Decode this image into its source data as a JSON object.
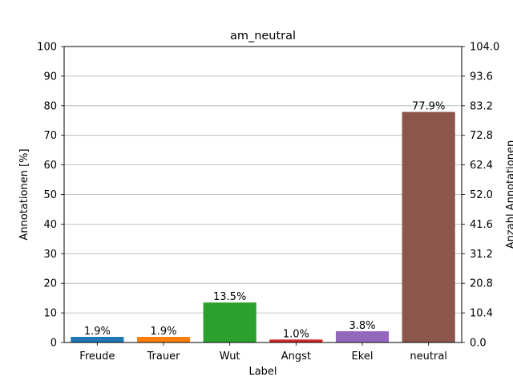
{
  "chart_data": {
    "type": "bar",
    "title": "am_neutral",
    "xlabel": "Label",
    "ylabel": "Annotationen [%]",
    "ylabel_right": "Anzahl Annotationen",
    "categories": [
      "Freude",
      "Trauer",
      "Wut",
      "Angst",
      "Ekel",
      "neutral"
    ],
    "values": [
      1.9,
      1.9,
      13.5,
      1.0,
      3.8,
      77.9
    ],
    "value_labels": [
      "1.9%",
      "1.9%",
      "13.5%",
      "1.0%",
      "3.8%",
      "77.9%"
    ],
    "colors": [
      "#1f77b4",
      "#ff7f0e",
      "#2ca02c",
      "#d62728",
      "#9467bd",
      "#8c564b"
    ],
    "ylim": [
      0,
      100
    ],
    "yticks": [
      "0",
      "10",
      "20",
      "30",
      "40",
      "50",
      "60",
      "70",
      "80",
      "90",
      "100"
    ],
    "ylim_right": [
      0,
      104.0
    ],
    "yticks_right": [
      "0.0",
      "10.4",
      "20.8",
      "31.2",
      "41.6",
      "52.0",
      "62.4",
      "72.8",
      "83.2",
      "93.6",
      "104.0"
    ],
    "grid": "horizontal",
    "legend": "none"
  }
}
